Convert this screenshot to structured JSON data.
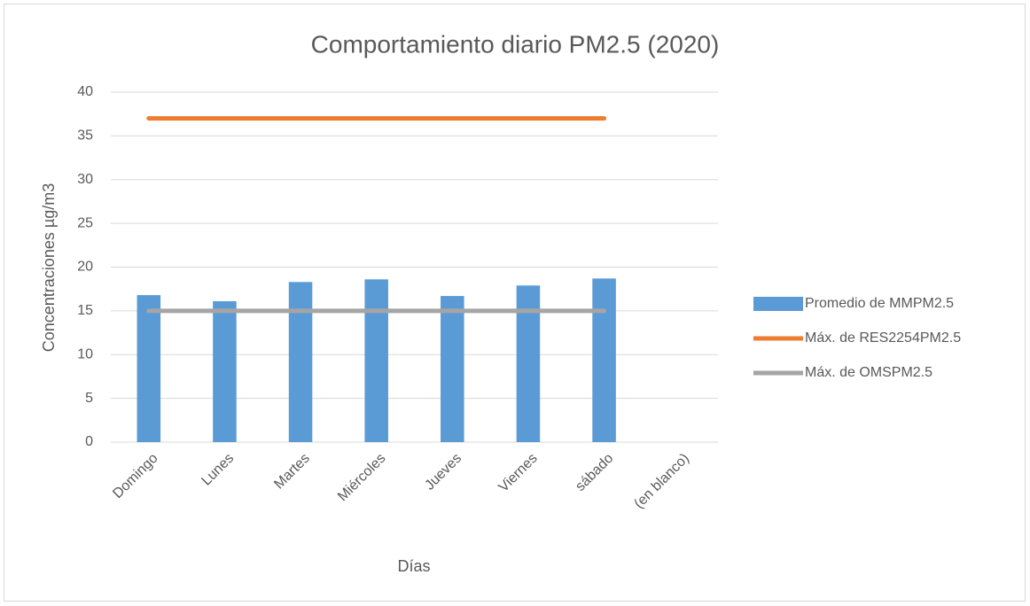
{
  "chart_data": {
    "type": "combo",
    "title": "Comportamiento diario PM2.5 (2020)",
    "x_label": "Días",
    "y_label": "Concentraciones µg/m3",
    "categories": [
      "Domingo",
      "Lunes",
      "Martes",
      "Miércoles",
      "Jueves",
      "Viernes",
      "sábado",
      "(en blanco)"
    ],
    "series": [
      {
        "name": "Promedio de MMPM2.5",
        "type": "bar",
        "color": "#5b9bd5",
        "values": [
          16.8,
          16.1,
          18.3,
          18.6,
          16.7,
          17.9,
          18.7,
          null
        ]
      },
      {
        "name": "Máx. de RES2254PM2.5",
        "type": "line",
        "color": "#ed7d31",
        "values": [
          37,
          37,
          37,
          37,
          37,
          37,
          37,
          null
        ]
      },
      {
        "name": "Máx. de OMSPM2.5",
        "type": "line",
        "color": "#a5a5a5",
        "values": [
          15,
          15,
          15,
          15,
          15,
          15,
          15,
          null
        ]
      }
    ],
    "ylim": [
      0,
      40
    ],
    "yticks": [
      0,
      5,
      10,
      15,
      20,
      25,
      30,
      35,
      40
    ],
    "grid": true,
    "legend": "right"
  }
}
